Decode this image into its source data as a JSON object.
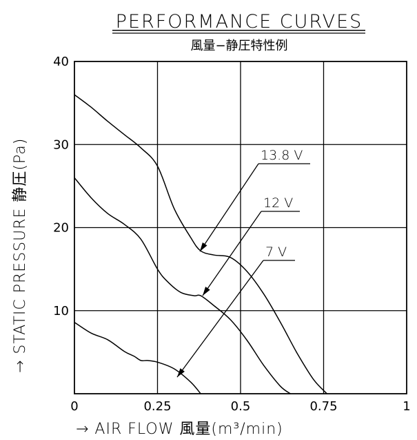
{
  "chart_data": {
    "type": "line",
    "title": "PERFORMANCE CURVES",
    "subtitle": "風量−静圧特性例",
    "xlabel": "→ AIR FLOW 風量(m³/min)",
    "ylabel": "→ STATIC PRESSURE 静圧(Pa)",
    "xlim": [
      0,
      1
    ],
    "ylim": [
      0,
      40
    ],
    "x_ticks": [
      0,
      0.25,
      0.5,
      0.75,
      1
    ],
    "x_tick_labels": [
      "0",
      "0.25",
      "0.5",
      "0.75",
      "1"
    ],
    "y_ticks": [
      10,
      20,
      30,
      40
    ],
    "y_tick_labels": [
      "10",
      "20",
      "30",
      "40"
    ],
    "grid": true,
    "legend": "none",
    "series": [
      {
        "name": "13.8 V",
        "x": [
          0,
          0.05,
          0.1,
          0.15,
          0.2,
          0.25,
          0.3,
          0.35,
          0.38,
          0.42,
          0.47,
          0.52,
          0.57,
          0.62,
          0.67,
          0.72,
          0.76
        ],
        "y": [
          36,
          34.5,
          32.8,
          31.2,
          29.6,
          27.4,
          22.3,
          18.8,
          17.2,
          16.7,
          16.4,
          14.7,
          12,
          8.6,
          4.9,
          1.7,
          0
        ]
      },
      {
        "name": "12 V",
        "x": [
          0,
          0.05,
          0.1,
          0.15,
          0.2,
          0.25,
          0.28,
          0.32,
          0.36,
          0.38,
          0.42,
          0.47,
          0.52,
          0.57,
          0.62,
          0.65
        ],
        "y": [
          26,
          23.6,
          21.7,
          20.4,
          18.6,
          15,
          13.5,
          12.2,
          11.8,
          11.8,
          10.6,
          8.9,
          6.4,
          3.4,
          0.9,
          0
        ]
      },
      {
        "name": "7 V",
        "x": [
          0,
          0.05,
          0.1,
          0.15,
          0.18,
          0.2,
          0.22,
          0.25,
          0.3,
          0.35,
          0.38
        ],
        "y": [
          8.6,
          7.3,
          6.5,
          5.1,
          4.5,
          4,
          4,
          3.8,
          3,
          1.4,
          0
        ]
      }
    ],
    "annotations": [
      "13.8 V",
      "12 V",
      "7 V"
    ]
  }
}
